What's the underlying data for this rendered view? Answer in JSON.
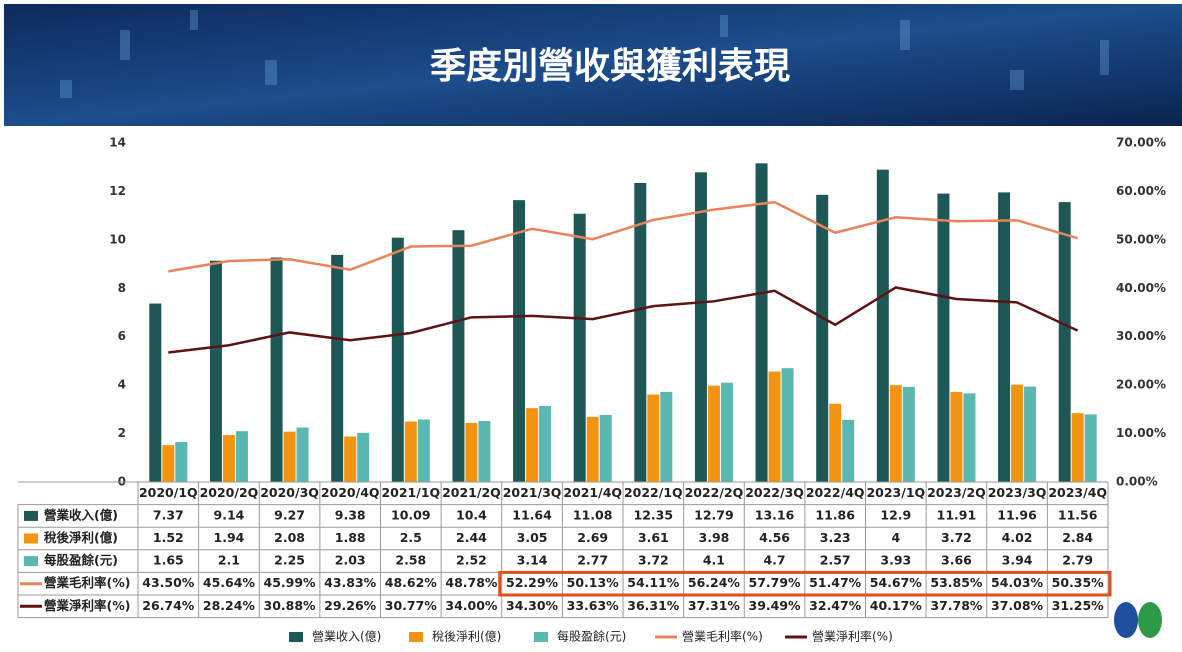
{
  "chart_data": {
    "type": "bar",
    "title": "季度別營收與獲利表現",
    "categories": [
      "2020/1Q",
      "2020/2Q",
      "2020/3Q",
      "2020/4Q",
      "2021/1Q",
      "2021/2Q",
      "2021/3Q",
      "2021/4Q",
      "2022/1Q",
      "2022/2Q",
      "2022/3Q",
      "2022/4Q",
      "2023/1Q",
      "2023/2Q",
      "2023/3Q",
      "2023/4Q"
    ],
    "series": [
      {
        "name": "營業收入(億)",
        "color": "#1d5856",
        "values": [
          7.37,
          9.14,
          9.27,
          9.38,
          10.09,
          10.4,
          11.64,
          11.08,
          12.35,
          12.79,
          13.16,
          11.86,
          12.9,
          11.91,
          11.96,
          11.56
        ]
      },
      {
        "name": "稅後淨利(億)",
        "color": "#f39312",
        "values": [
          1.52,
          1.94,
          2.08,
          1.88,
          2.5,
          2.44,
          3.05,
          2.69,
          3.61,
          3.98,
          4.56,
          3.23,
          4,
          3.72,
          4.02,
          2.84
        ]
      },
      {
        "name": "每股盈餘(元)",
        "color": "#5bb7b2",
        "values": [
          1.65,
          2.1,
          2.25,
          2.03,
          2.58,
          2.52,
          3.14,
          2.77,
          3.72,
          4.1,
          4.7,
          2.57,
          3.93,
          3.66,
          3.94,
          2.79
        ]
      },
      {
        "name": "營業毛利率(%)",
        "color": "#e8835c",
        "type": "line",
        "axis": "y2",
        "values": [
          43.5,
          45.64,
          45.99,
          43.83,
          48.62,
          48.78,
          52.29,
          50.13,
          54.11,
          56.24,
          57.79,
          51.47,
          54.67,
          53.85,
          54.03,
          50.35
        ],
        "value_labels": [
          "43.50%",
          "45.64%",
          "45.99%",
          "43.83%",
          "48.62%",
          "48.78%",
          "52.29%",
          "50.13%",
          "54.11%",
          "56.24%",
          "57.79%",
          "51.47%",
          "54.67%",
          "53.85%",
          "54.03%",
          "50.35%"
        ]
      },
      {
        "name": "營業淨利率(%)",
        "color": "#5e1212",
        "type": "line",
        "axis": "y2",
        "values": [
          26.74,
          28.24,
          30.88,
          29.26,
          30.77,
          34,
          34.3,
          33.63,
          36.31,
          37.31,
          39.49,
          32.47,
          40.17,
          37.78,
          37.08,
          31.25
        ],
        "value_labels": [
          "26.74%",
          "28.24%",
          "30.88%",
          "29.26%",
          "30.77%",
          "34.00%",
          "34.30%",
          "33.63%",
          "36.31%",
          "37.31%",
          "39.49%",
          "32.47%",
          "40.17%",
          "37.78%",
          "37.08%",
          "31.25%"
        ]
      }
    ],
    "ylim": [
      0,
      14
    ],
    "yticks": [
      0,
      2,
      4,
      6,
      8,
      10,
      12,
      14
    ],
    "y2lim": [
      0,
      70
    ],
    "y2ticks": [
      {
        "value": 0,
        "label": "0.00%"
      },
      {
        "value": 10,
        "label": "10.00%"
      },
      {
        "value": 20,
        "label": "20.00%"
      },
      {
        "value": 30,
        "label": "30.00%"
      },
      {
        "value": 40,
        "label": "40.00%"
      },
      {
        "value": 50,
        "label": "50.00%"
      },
      {
        "value": 60,
        "label": "60.00%"
      },
      {
        "value": 70,
        "label": "70.00%"
      }
    ]
  }
}
